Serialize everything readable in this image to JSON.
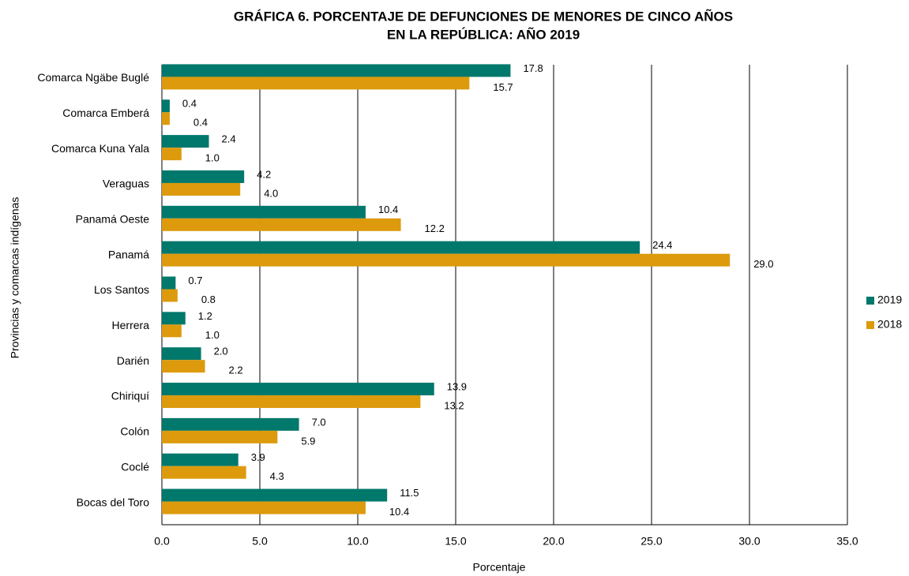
{
  "chart_data": {
    "type": "bar",
    "orientation": "horizontal",
    "title": [
      "GRÁFICA 6. PORCENTAJE DE DEFUNCIONES DE MENORES DE CINCO AÑOS",
      "EN LA REPÚBLICA: AÑO 2019"
    ],
    "x_label": "Porcentaje",
    "y_label": "Provincias y comarcas indígenas",
    "categories": [
      "Comarca Ngäbe Buglé",
      "Comarca Emberá",
      "Comarca Kuna Yala",
      "Veraguas",
      "Panamá Oeste",
      "Panamá",
      "Los Santos",
      "Herrera",
      "Darién",
      "Chiriquí",
      "Colón",
      "Coclé",
      "Bocas del Toro"
    ],
    "series": [
      {
        "name": "2019",
        "color": "#00786b",
        "values": [
          17.8,
          0.4,
          2.4,
          4.2,
          10.4,
          24.4,
          0.7,
          1.2,
          2.0,
          13.9,
          7.0,
          3.9,
          11.5
        ],
        "value_labels": [
          "17.8",
          "0.4",
          "2.4",
          "4.2",
          "10.4",
          "24.4",
          "0.7",
          "1.2",
          "2.0",
          "13.9",
          "7.0",
          "3.9",
          "11.5"
        ]
      },
      {
        "name": "2018",
        "color": "#dc9a0c",
        "values": [
          15.7,
          0.4,
          1.0,
          4.0,
          12.2,
          29.0,
          0.8,
          1.0,
          2.2,
          13.2,
          5.9,
          4.3,
          10.4
        ],
        "value_labels": [
          "15.7",
          "0.4",
          "1.0",
          "4.0",
          "12.2",
          "29.0",
          "0.8",
          "1.0",
          "2.2",
          "13.2",
          "5.9",
          "4.3",
          "10.4"
        ]
      }
    ],
    "xlim": [
      0,
      35
    ],
    "xticks": [
      {
        "value": 0,
        "label": "0.0"
      },
      {
        "value": 5,
        "label": "5.0"
      },
      {
        "value": 10,
        "label": "10.0"
      },
      {
        "value": 15,
        "label": "15.0"
      },
      {
        "value": 20,
        "label": "20.0"
      },
      {
        "value": 25,
        "label": "25.0"
      },
      {
        "value": 30,
        "label": "30.0"
      },
      {
        "value": 35,
        "label": "35.0"
      }
    ],
    "grid": true,
    "legend": "right"
  }
}
